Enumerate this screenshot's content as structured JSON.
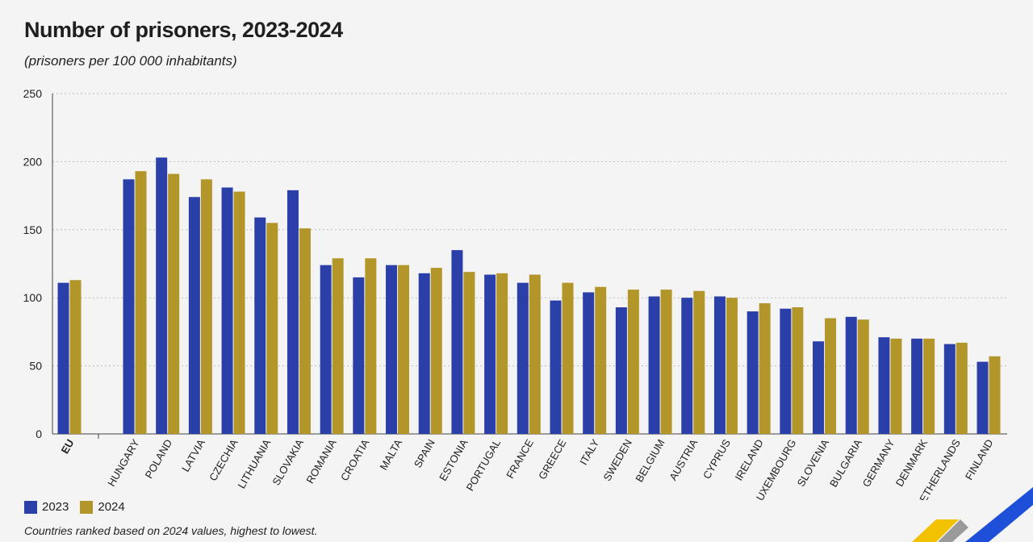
{
  "title": "Number of prisoners, 2023-2024",
  "subtitle": "(prisoners per 100 000 inhabitants)",
  "footnote": "Countries ranked based on 2024 values, highest to lowest.",
  "colors": {
    "s2023": "#2b3fa8",
    "s2024": "#b3962a",
    "grid": "#bdbdbd",
    "axis": "#444444"
  },
  "chart_data": {
    "type": "bar",
    "categories": [
      "EU",
      "HUNGARY",
      "POLAND",
      "LATVIA",
      "CZECHIA",
      "LITHUANIA",
      "SLOVAKIA",
      "ROMANIA",
      "CROATIA",
      "MALTA",
      "SPAIN",
      "ESTONIA",
      "PORTUGAL",
      "FRANCE",
      "GREECE",
      "ITALY",
      "SWEDEN",
      "BELGIUM",
      "AUSTRIA",
      "CYPRUS",
      "IRELAND",
      "LUXEMBOURG",
      "SLOVENIA",
      "BULGARIA",
      "GERMANY",
      "DENMARK",
      "NETHERLANDS",
      "FINLAND"
    ],
    "series": [
      {
        "name": "2023",
        "values": [
          111,
          187,
          203,
          174,
          181,
          159,
          179,
          124,
          115,
          124,
          118,
          135,
          117,
          111,
          98,
          104,
          93,
          101,
          100,
          101,
          90,
          92,
          68,
          86,
          71,
          70,
          66,
          53
        ]
      },
      {
        "name": "2024",
        "values": [
          113,
          193,
          191,
          187,
          178,
          155,
          151,
          129,
          129,
          124,
          122,
          119,
          118,
          117,
          111,
          108,
          106,
          106,
          105,
          100,
          96,
          93,
          85,
          84,
          70,
          70,
          67,
          57
        ]
      }
    ],
    "yticks": [
      0,
      50,
      100,
      150,
      200,
      250
    ],
    "ylim": [
      0,
      250
    ],
    "grid": true,
    "legend": "bottom-left"
  }
}
